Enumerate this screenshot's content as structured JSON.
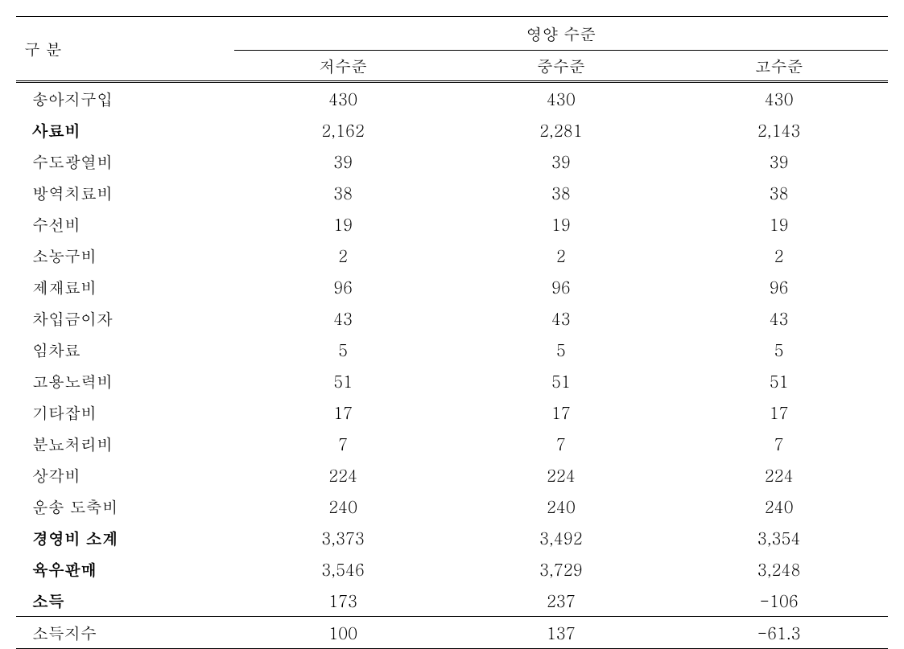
{
  "table": {
    "columns": {
      "category_label": "구 분",
      "group_header": "영양 수준",
      "sub_headers": [
        "저수준",
        "중수준",
        "고수준"
      ]
    },
    "rows": [
      {
        "label": "송아지구입",
        "values": [
          "430",
          "430",
          "430"
        ],
        "bold": false
      },
      {
        "label": "사료비",
        "values": [
          "2,162",
          "2,281",
          "2,143"
        ],
        "bold": true
      },
      {
        "label": "수도광열비",
        "values": [
          "39",
          "39",
          "39"
        ],
        "bold": false
      },
      {
        "label": "방역치료비",
        "values": [
          "38",
          "38",
          "38"
        ],
        "bold": false
      },
      {
        "label": "수선비",
        "values": [
          "19",
          "19",
          "19"
        ],
        "bold": false
      },
      {
        "label": "소농구비",
        "values": [
          "2",
          "2",
          "2"
        ],
        "bold": false
      },
      {
        "label": "제재료비",
        "values": [
          "96",
          "96",
          "96"
        ],
        "bold": false
      },
      {
        "label": "차입금이자",
        "values": [
          "43",
          "43",
          "43"
        ],
        "bold": false
      },
      {
        "label": "임차료",
        "values": [
          "5",
          "5",
          "5"
        ],
        "bold": false
      },
      {
        "label": "고용노력비",
        "values": [
          "51",
          "51",
          "51"
        ],
        "bold": false
      },
      {
        "label": "기타잡비",
        "values": [
          "17",
          "17",
          "17"
        ],
        "bold": false
      },
      {
        "label": "분뇨처리비",
        "values": [
          "7",
          "7",
          "7"
        ],
        "bold": false
      },
      {
        "label": "상각비",
        "values": [
          "224",
          "224",
          "224"
        ],
        "bold": false
      },
      {
        "label": "운송 도축비",
        "values": [
          "240",
          "240",
          "240"
        ],
        "bold": false
      },
      {
        "label": "경영비 소계",
        "values": [
          "3,373",
          "3,492",
          "3,354"
        ],
        "bold": true
      },
      {
        "label": "육우판매",
        "values": [
          "3,546",
          "3,729",
          "3,248"
        ],
        "bold": true
      },
      {
        "label": "소득",
        "values": [
          "173",
          "237",
          "-106"
        ],
        "bold": true
      }
    ],
    "footer_row": {
      "label": "소득지수",
      "values": [
        "100",
        "137",
        "-61.3"
      ],
      "bold": false
    },
    "styling": {
      "background_color": "#ffffff",
      "text_color": "#000000",
      "border_color": "#000000",
      "font_family": "Batang, serif",
      "font_size_pt": 15,
      "bold_rows_indices": [
        1,
        14,
        15,
        16
      ],
      "col_widths_pct": [
        25,
        25,
        25,
        25
      ],
      "alignment": {
        "label": "left",
        "values": "center"
      }
    }
  }
}
